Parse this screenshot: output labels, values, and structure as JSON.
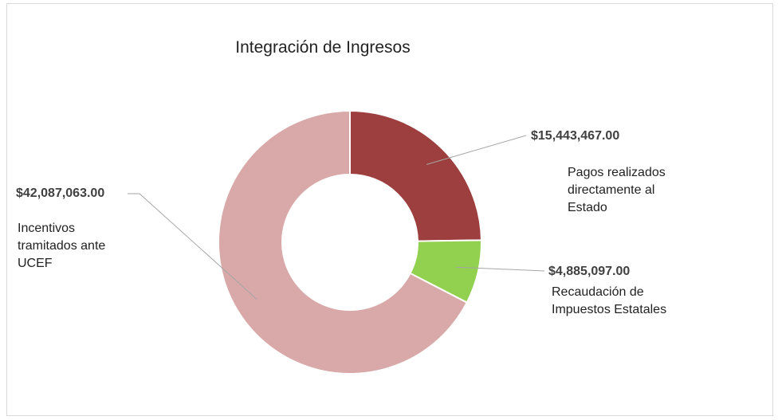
{
  "chart_data": {
    "type": "pie",
    "donut": true,
    "title": "Integración de Ingresos",
    "categories": [
      "Pagos realizados directamente al Estado",
      "Recaudación de Impuestos Estatales",
      "Incentivos tramitados ante UCEF"
    ],
    "values": [
      15443467,
      4885097,
      42087063
    ],
    "value_labels": [
      "$15,443,467.00",
      "$4,885,097.00",
      "$42,087,063.00"
    ],
    "colors": [
      "#9e3f3f",
      "#92d050",
      "#d9a9a9"
    ]
  }
}
